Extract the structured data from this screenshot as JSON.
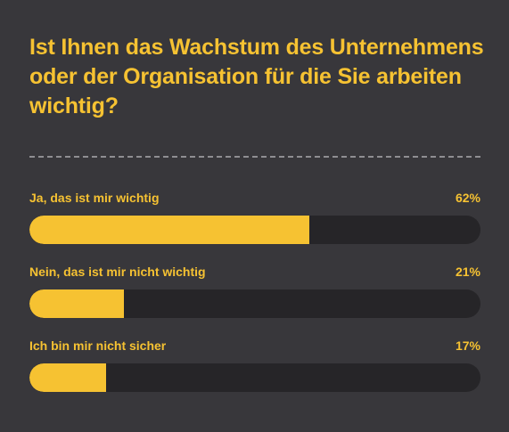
{
  "chart_data": {
    "type": "bar",
    "title": "Ist Ihnen das Wachstum des Unternehmens oder der Organisation für die Sie arbeiten wichtig?",
    "categories": [
      "Ja, das ist mir wichtig",
      "Nein, das ist mir nicht wichtig",
      "Ich bin mir nicht sicher"
    ],
    "values": [
      62,
      21,
      17
    ],
    "value_labels": [
      "62%",
      "21%",
      "17%"
    ],
    "ylim": [
      0,
      100
    ],
    "orientation": "horizontal",
    "grid": false,
    "colors": {
      "background": "#38373b",
      "bar": "#f6c232",
      "track": "#262528",
      "text": "#f6c232",
      "divider": "#8f8e92"
    }
  }
}
